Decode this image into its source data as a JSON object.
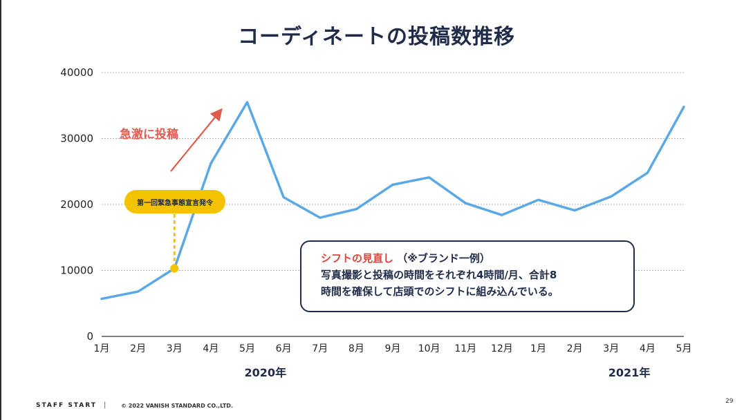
{
  "page": {
    "title": "コーディネートの投稿数推移",
    "footer_brand": "STAFF START",
    "footer_separator": "|",
    "footer_copyright": "© 2022 VANISH STANDARD CO.,LTD.",
    "page_number": "29"
  },
  "annotations": {
    "surge_label": "急激に投稿",
    "event_label": "第一回緊急事態宣言発令",
    "note_heading": "シフトの見直し",
    "note_heading_sub": "（※ブランド一例）",
    "note_line1": "写真撮影と投稿の時間をそれぞれ4時間/月、合計8",
    "note_line2": "時間を確保して店頭でのシフトに組み込んでいる。"
  },
  "colors": {
    "line": "#5aa9e6",
    "title": "#1f2b48",
    "accent_red": "#e2413a",
    "pill": "#f4c300",
    "event_dot": "#f4c300",
    "arrow": "#e05a4c",
    "grid": "#b0b0b0"
  },
  "chart_data": {
    "type": "line",
    "title": "コーディネートの投稿数推移",
    "xlabel": "",
    "ylabel": "",
    "ylim": [
      0,
      40000
    ],
    "yticks": [
      0,
      10000,
      20000,
      30000,
      40000
    ],
    "grid": true,
    "categories": [
      "1月",
      "2月",
      "3月",
      "4月",
      "5月",
      "6月",
      "7月",
      "8月",
      "9月",
      "10月",
      "11月",
      "12月",
      "1月",
      "2月",
      "3月",
      "4月",
      "5月"
    ],
    "year_labels": [
      {
        "label": "2020年",
        "category_index": 4.5
      },
      {
        "label": "2021年",
        "category_index": 14.5
      }
    ],
    "series": [
      {
        "values": [
          5700,
          6800,
          10300,
          26200,
          35500,
          21100,
          18000,
          19300,
          23000,
          24100,
          20200,
          18400,
          20700,
          19100,
          21200,
          24800,
          34800
        ]
      }
    ],
    "event_marker": {
      "category_index": 2,
      "value": 10300
    }
  }
}
